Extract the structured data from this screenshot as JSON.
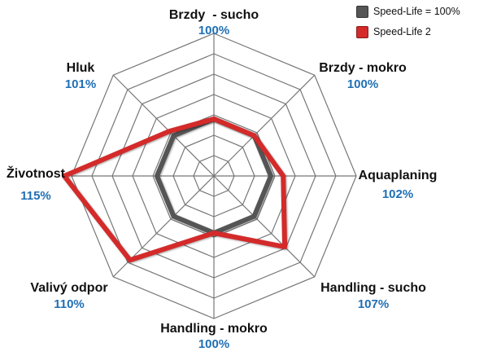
{
  "chart_data": {
    "type": "radar",
    "axes": [
      {
        "name": "Brzdy  - sucho",
        "value_label": "100%"
      },
      {
        "name": "Brzdy - mokro",
        "value_label": "100%"
      },
      {
        "name": "Aquaplaning",
        "value_label": "102%"
      },
      {
        "name": "Handling - sucho",
        "value_label": "107%"
      },
      {
        "name": "Handling - mokro",
        "value_label": "100%"
      },
      {
        "name": "Valivý odpor",
        "value_label": "110%"
      },
      {
        "name": "Životnost",
        "value_label": "115%"
      },
      {
        "name": "Hluk",
        "value_label": "101%"
      }
    ],
    "series": [
      {
        "name": "Speed-Life = 100%",
        "color": "#555555",
        "values": [
          100,
          100,
          100,
          100,
          100,
          100,
          100,
          100
        ]
      },
      {
        "name": "Speed-Life 2",
        "color": "#d42a2a",
        "values": [
          100,
          100,
          102,
          107,
          100,
          110,
          115,
          101
        ]
      }
    ],
    "grid_rings": 7,
    "value_color": "#1f6fb5",
    "legend_position": "top-right"
  }
}
